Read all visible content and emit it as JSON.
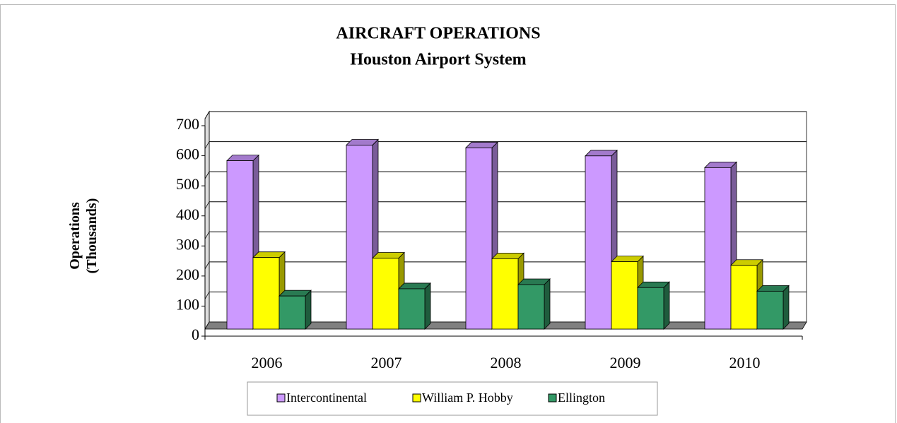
{
  "chart_data": {
    "type": "bar3d",
    "title": "AIRCRAFT OPERATIONS",
    "subtitle": "Houston Airport System",
    "ylabel": "Operations (Thousands)",
    "categories": [
      "2006",
      "2007",
      "2008",
      "2009",
      "2010"
    ],
    "series": [
      {
        "name": "Intercontinental",
        "color": "#cc99ff",
        "values": [
          560,
          612,
          603,
          576,
          537
        ]
      },
      {
        "name": "William P. Hobby",
        "color": "#ffff00",
        "values": [
          238,
          236,
          234,
          224,
          212
        ]
      },
      {
        "name": "Ellington",
        "color": "#339966",
        "values": [
          110,
          134,
          148,
          138,
          126
        ]
      }
    ],
    "ylim": [
      0,
      700
    ],
    "yticks": [
      0,
      100,
      200,
      300,
      400,
      500,
      600,
      700
    ],
    "grid": true,
    "legend": "bottom"
  }
}
